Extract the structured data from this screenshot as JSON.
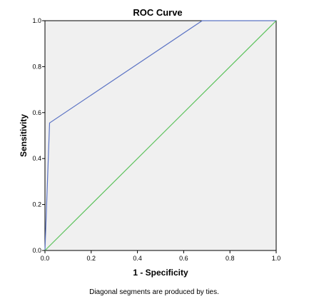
{
  "chart_data": {
    "type": "line",
    "title": "ROC Curve",
    "xlabel": "1 - Specificity",
    "ylabel": "Sensitivity",
    "xlim": [
      0,
      1
    ],
    "ylim": [
      0,
      1
    ],
    "x_ticks": [
      "0.0",
      "0.2",
      "0.4",
      "0.6",
      "0.8",
      "1.0"
    ],
    "y_ticks": [
      "0.0",
      "0.2",
      "0.4",
      "0.6",
      "0.8",
      "1.0"
    ],
    "series": [
      {
        "color": "#5b73c4",
        "points": [
          [
            0,
            0
          ],
          [
            0.02,
            0.555
          ],
          [
            0.68,
            1.0
          ],
          [
            1.0,
            1.0
          ]
        ]
      },
      {
        "color": "#5cc25c",
        "points": [
          [
            0,
            0
          ],
          [
            1.0,
            1.0
          ]
        ]
      }
    ],
    "footnote": "Diagonal segments are produced by ties.",
    "plot_background": "#f0f0f0",
    "grid": false,
    "legend": "none"
  }
}
